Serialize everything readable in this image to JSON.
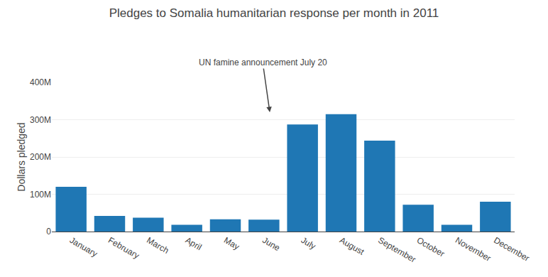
{
  "chart_data": {
    "type": "bar",
    "title": "Pledges to Somalia humanitarian response per month in 2011",
    "y_label": "Dollars pledged",
    "annotations": [
      "UN famine announcement July 20"
    ],
    "categories": [
      "January",
      "February",
      "March",
      "April",
      "May",
      "June",
      "July",
      "August",
      "September",
      "October",
      "November",
      "December"
    ],
    "values": [
      120000000,
      42000000,
      37000000,
      18000000,
      33000000,
      32000000,
      287000000,
      315000000,
      244000000,
      72000000,
      18000000,
      80000000
    ],
    "color": "#1f77b4",
    "ylim": [
      0,
      400000000
    ],
    "yticks": [
      0,
      {
        "value": 100000000,
        "label": "100M"
      },
      {
        "value": 200000000,
        "label": "200M"
      },
      {
        "value": 300000000,
        "label": "300M"
      },
      {
        "value": 400000000,
        "label": "400M"
      }
    ],
    "grid": true
  }
}
